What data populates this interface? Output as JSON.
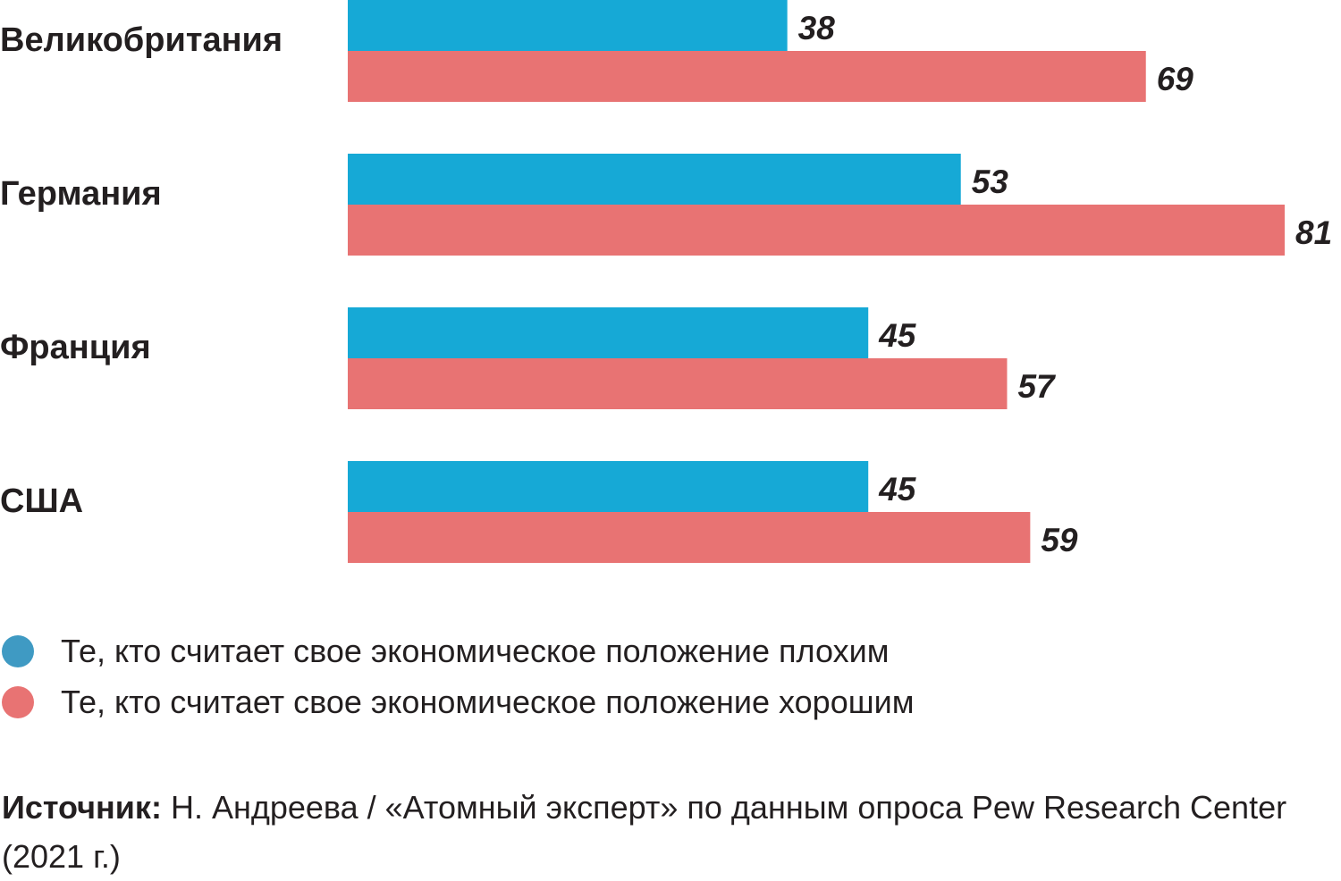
{
  "chart_data": {
    "type": "bar",
    "orientation": "horizontal",
    "categories": [
      "Великобритания",
      "Германия",
      "Франция",
      "США"
    ],
    "series": [
      {
        "name": "Те, кто считает свое экономическое положение плохим",
        "color": "#16a9d6",
        "values": [
          38,
          53,
          45,
          45
        ]
      },
      {
        "name": "Те, кто считает свое экономическое положение хорошим",
        "color": "#e87373",
        "values": [
          69,
          81,
          57,
          59
        ]
      }
    ],
    "xlim": [
      0,
      81
    ],
    "grid": false,
    "data_labels": true,
    "legend_position": "bottom"
  },
  "legend": {
    "bad_label": "Те, кто считает свое экономическое положение плохим",
    "good_label": "Те, кто считает свое экономическое положение хорошим",
    "bad_dot_color": "#3f9ac3",
    "good_dot_color": "#e87373"
  },
  "source": {
    "label": "Источник:",
    "text": " Н. Андреева / «Атомный эксперт» по данным опроса Pew Research Center (2021 г.)"
  }
}
